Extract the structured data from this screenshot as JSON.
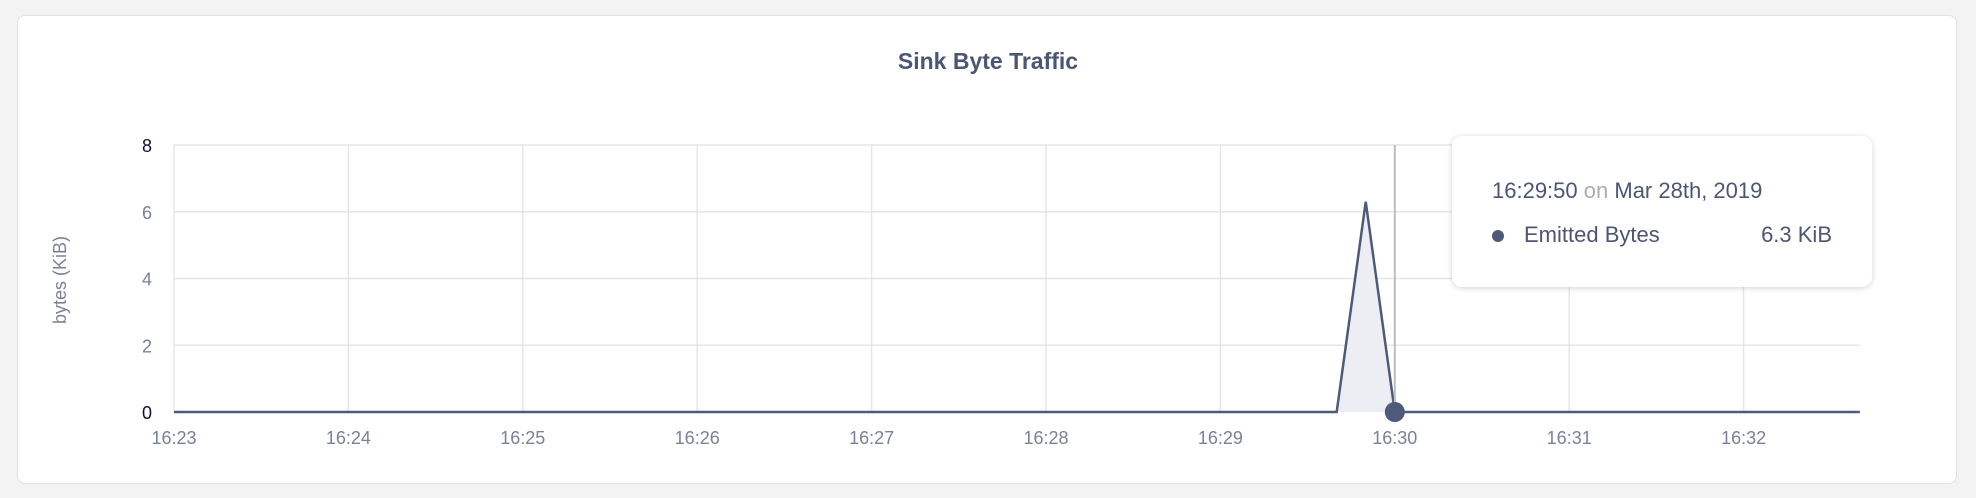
{
  "chart_data": {
    "type": "area",
    "title": "Sink Byte Traffic",
    "xlabel": "",
    "ylabel": "bytes (KiB)",
    "ylim": [
      0,
      8
    ],
    "yticks": [
      "0",
      "2",
      "4",
      "6",
      "8"
    ],
    "xlim": [
      "16:23:00",
      "16:32:40"
    ],
    "xticks": [
      "16:23",
      "16:24",
      "16:25",
      "16:26",
      "16:27",
      "16:28",
      "16:29",
      "16:30",
      "16:31",
      "16:32"
    ],
    "grid": true,
    "series": [
      {
        "name": "Emitted Bytes",
        "color": "#4f5a7a",
        "fill": "#eceef3",
        "points": [
          [
            "16:23:00",
            0
          ],
          [
            "16:29:40",
            0
          ],
          [
            "16:29:50",
            6.3
          ],
          [
            "16:30:00",
            0
          ],
          [
            "16:32:40",
            0
          ]
        ]
      }
    ],
    "cursor": "16:30:00"
  },
  "tooltip": {
    "time": "16:29:50",
    "on": "on",
    "date": "Mar 28th, 2019",
    "series_name": "Emitted Bytes",
    "value": "6.3 KiB"
  }
}
